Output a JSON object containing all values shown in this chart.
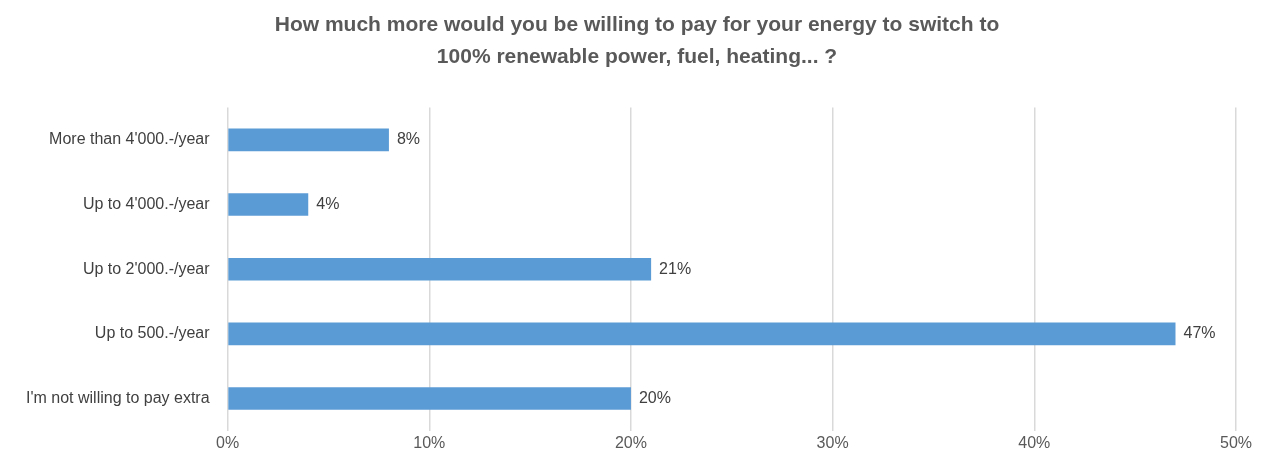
{
  "chart_data": {
    "type": "bar",
    "orientation": "horizontal",
    "title": "How much more would you be willing to pay for your energy to switch to 100% renewable power, fuel, heating... ?",
    "categories": [
      "More than 4'000.-/year",
      "Up to 4'000.-/year",
      "Up to 2'000.-/year",
      "Up to 500.-/year",
      "I'm not willing to pay extra"
    ],
    "values": [
      8,
      4,
      21,
      47,
      20
    ],
    "value_labels": [
      "8%",
      "4%",
      "21%",
      "47%",
      "20%"
    ],
    "color": "#5b9bd5",
    "xlim": [
      0,
      50
    ],
    "xticks": [
      {
        "value": 0,
        "label": "0%"
      },
      {
        "value": 10,
        "label": "10%"
      },
      {
        "value": 20,
        "label": "20%"
      },
      {
        "value": 30,
        "label": "30%"
      },
      {
        "value": 40,
        "label": "40%"
      },
      {
        "value": 50,
        "label": "50%"
      }
    ],
    "grid": "x",
    "legend": false
  }
}
